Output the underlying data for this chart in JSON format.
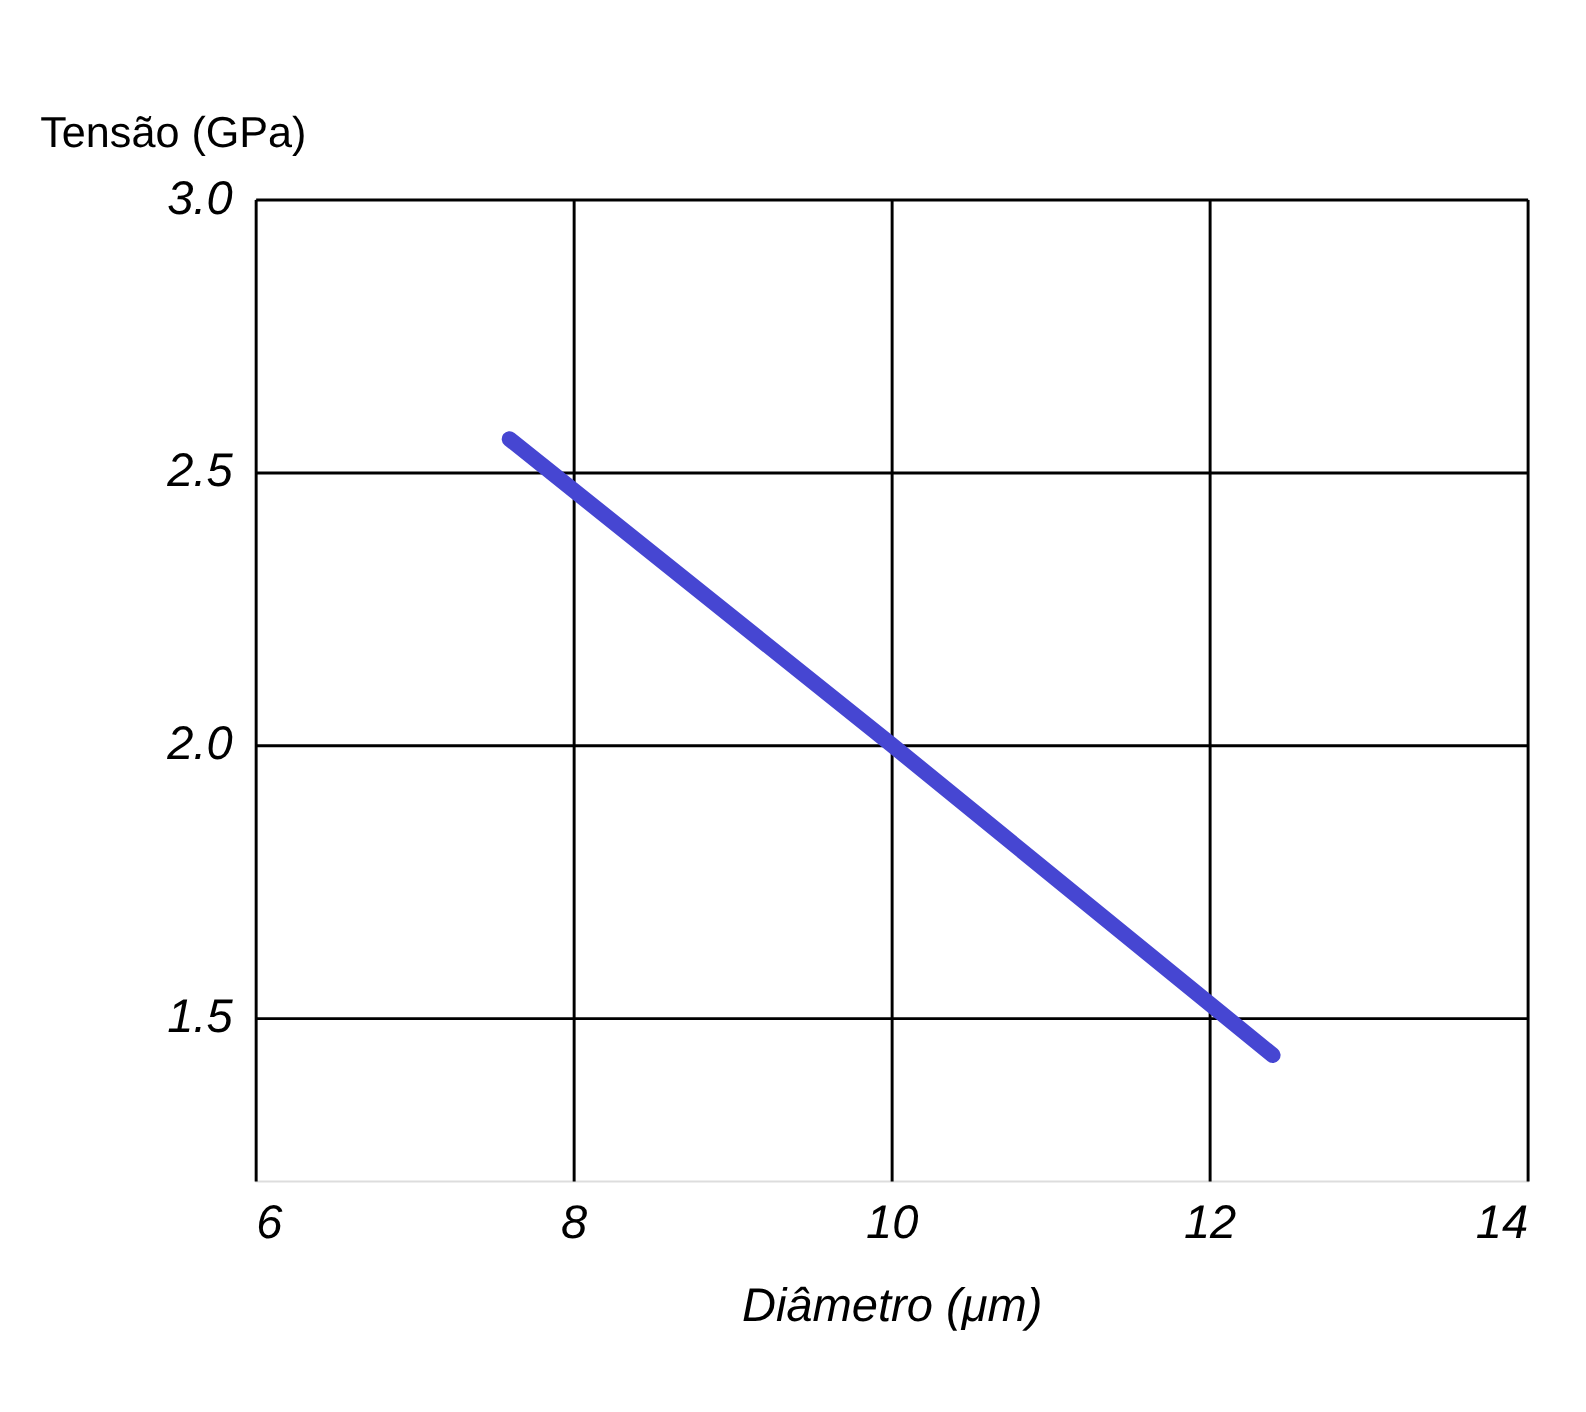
{
  "chart_data": {
    "type": "line",
    "xlabel": "Diâmetro (μm)",
    "ylabel": "Tensão (GPa)",
    "x": [
      7.6,
      10,
      12.4
    ],
    "series": [
      {
        "color": "#4646d2",
        "values": [
          2.56,
          2.0,
          1.43
        ]
      }
    ],
    "xlim": [
      6,
      14
    ],
    "xticks": [
      6,
      8,
      10,
      12,
      14
    ],
    "ylim": [
      1.2,
      3.0
    ],
    "yticks": [
      1.5,
      {
        "value": 2,
        "label": "2.0"
      },
      2.5,
      {
        "value": 3,
        "label": "3.0"
      }
    ],
    "grid": true,
    "marker": "none",
    "line_style": "solid"
  }
}
